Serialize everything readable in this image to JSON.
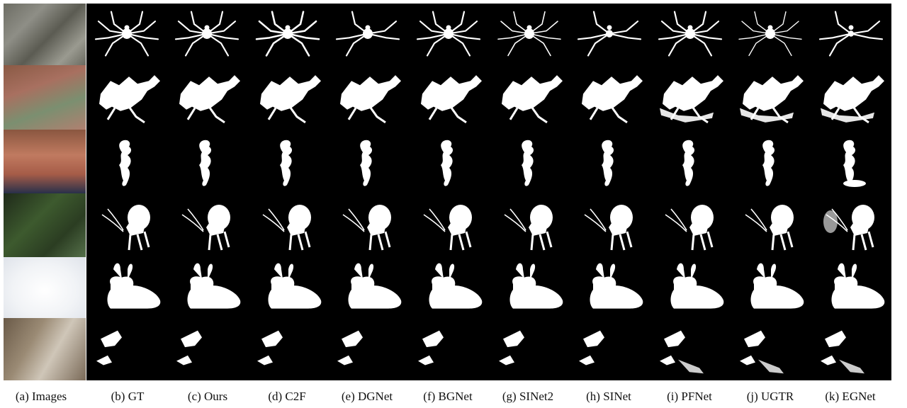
{
  "figure": {
    "columns": [
      {
        "label": "(a) Images"
      },
      {
        "label": "(b) GT"
      },
      {
        "label": "(c) Ours"
      },
      {
        "label": "(d) C2F"
      },
      {
        "label": "(e) DGNet"
      },
      {
        "label": "(f) BGNet"
      },
      {
        "label": "(g) SINet2"
      },
      {
        "label": "(h) SINet"
      },
      {
        "label": "(i) PFNet"
      },
      {
        "label": "(j) UGTR"
      },
      {
        "label": "(k) EGNet"
      }
    ],
    "rows": [
      {
        "subject": "spider"
      },
      {
        "subject": "mantis"
      },
      {
        "subject": "seahorse"
      },
      {
        "subject": "katydid"
      },
      {
        "subject": "hare"
      },
      {
        "subject": "owl"
      }
    ],
    "colors": {
      "mask_background": "#000000",
      "mask_foreground": "#ffffff",
      "caption_text": "#111111"
    }
  }
}
